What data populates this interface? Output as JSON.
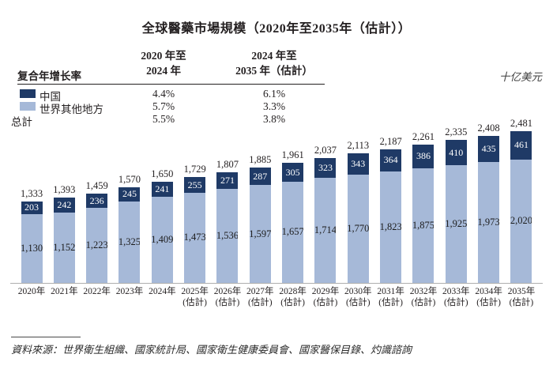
{
  "title": "全球醫藥市場規模（2020年至2035年（估計））",
  "unit_label": "十亿美元",
  "cagr": {
    "header": "复合年增长率",
    "col1": {
      "line1": "2020 年至",
      "line2": "2024 年"
    },
    "col2": {
      "line1": "2024 年至",
      "line2": "2035 年（估計）"
    },
    "rows": [
      {
        "label": "中国",
        "c1": "4.4%",
        "c2": "6.1%"
      },
      {
        "label": "世界其他地方",
        "c1": "5.7%",
        "c2": "3.3%"
      },
      {
        "label": "总計",
        "c1": "5.5%",
        "c2": "3.8%"
      }
    ]
  },
  "chart_data": {
    "type": "bar",
    "stacked": true,
    "title": "全球醫藥市場規模（2020年至2035年（估計））",
    "ylabel": "十亿美元",
    "categories": [
      "2020年",
      "2021年",
      "2022年",
      "2023年",
      "2024年",
      "2025年",
      "2026年",
      "2027年",
      "2028年",
      "2029年",
      "2030年",
      "2031年",
      "2032年",
      "2033年",
      "2034年",
      "2035年"
    ],
    "first_estimate_index": 5,
    "estimate_label": "(估計)",
    "series": [
      {
        "name": "中国",
        "color": "#1f3a66",
        "values": [
          203,
          242,
          236,
          245,
          241,
          255,
          271,
          287,
          305,
          323,
          343,
          364,
          386,
          410,
          435,
          461
        ]
      },
      {
        "name": "世界其他地方",
        "color": "#a6b9d8",
        "values": [
          1130,
          1152,
          1223,
          1325,
          1409,
          1473,
          1536,
          1597,
          1657,
          1714,
          1770,
          1823,
          1875,
          1925,
          1973,
          2020
        ]
      }
    ],
    "totals": [
      1333,
      1393,
      1459,
      1570,
      1650,
      1729,
      1807,
      1885,
      1961,
      2037,
      2113,
      2187,
      2261,
      2335,
      2408,
      2481
    ],
    "ylim": [
      0,
      2481
    ],
    "grid": false,
    "legend_position": "top-left"
  },
  "colors": {
    "china": "#1f3a66",
    "rest_of_world": "#a6b9d8"
  },
  "source_note": "資料來源：世界衛生組織、國家統計局、國家衛生健康委員會、國家醫保目錄、灼識諮詢"
}
